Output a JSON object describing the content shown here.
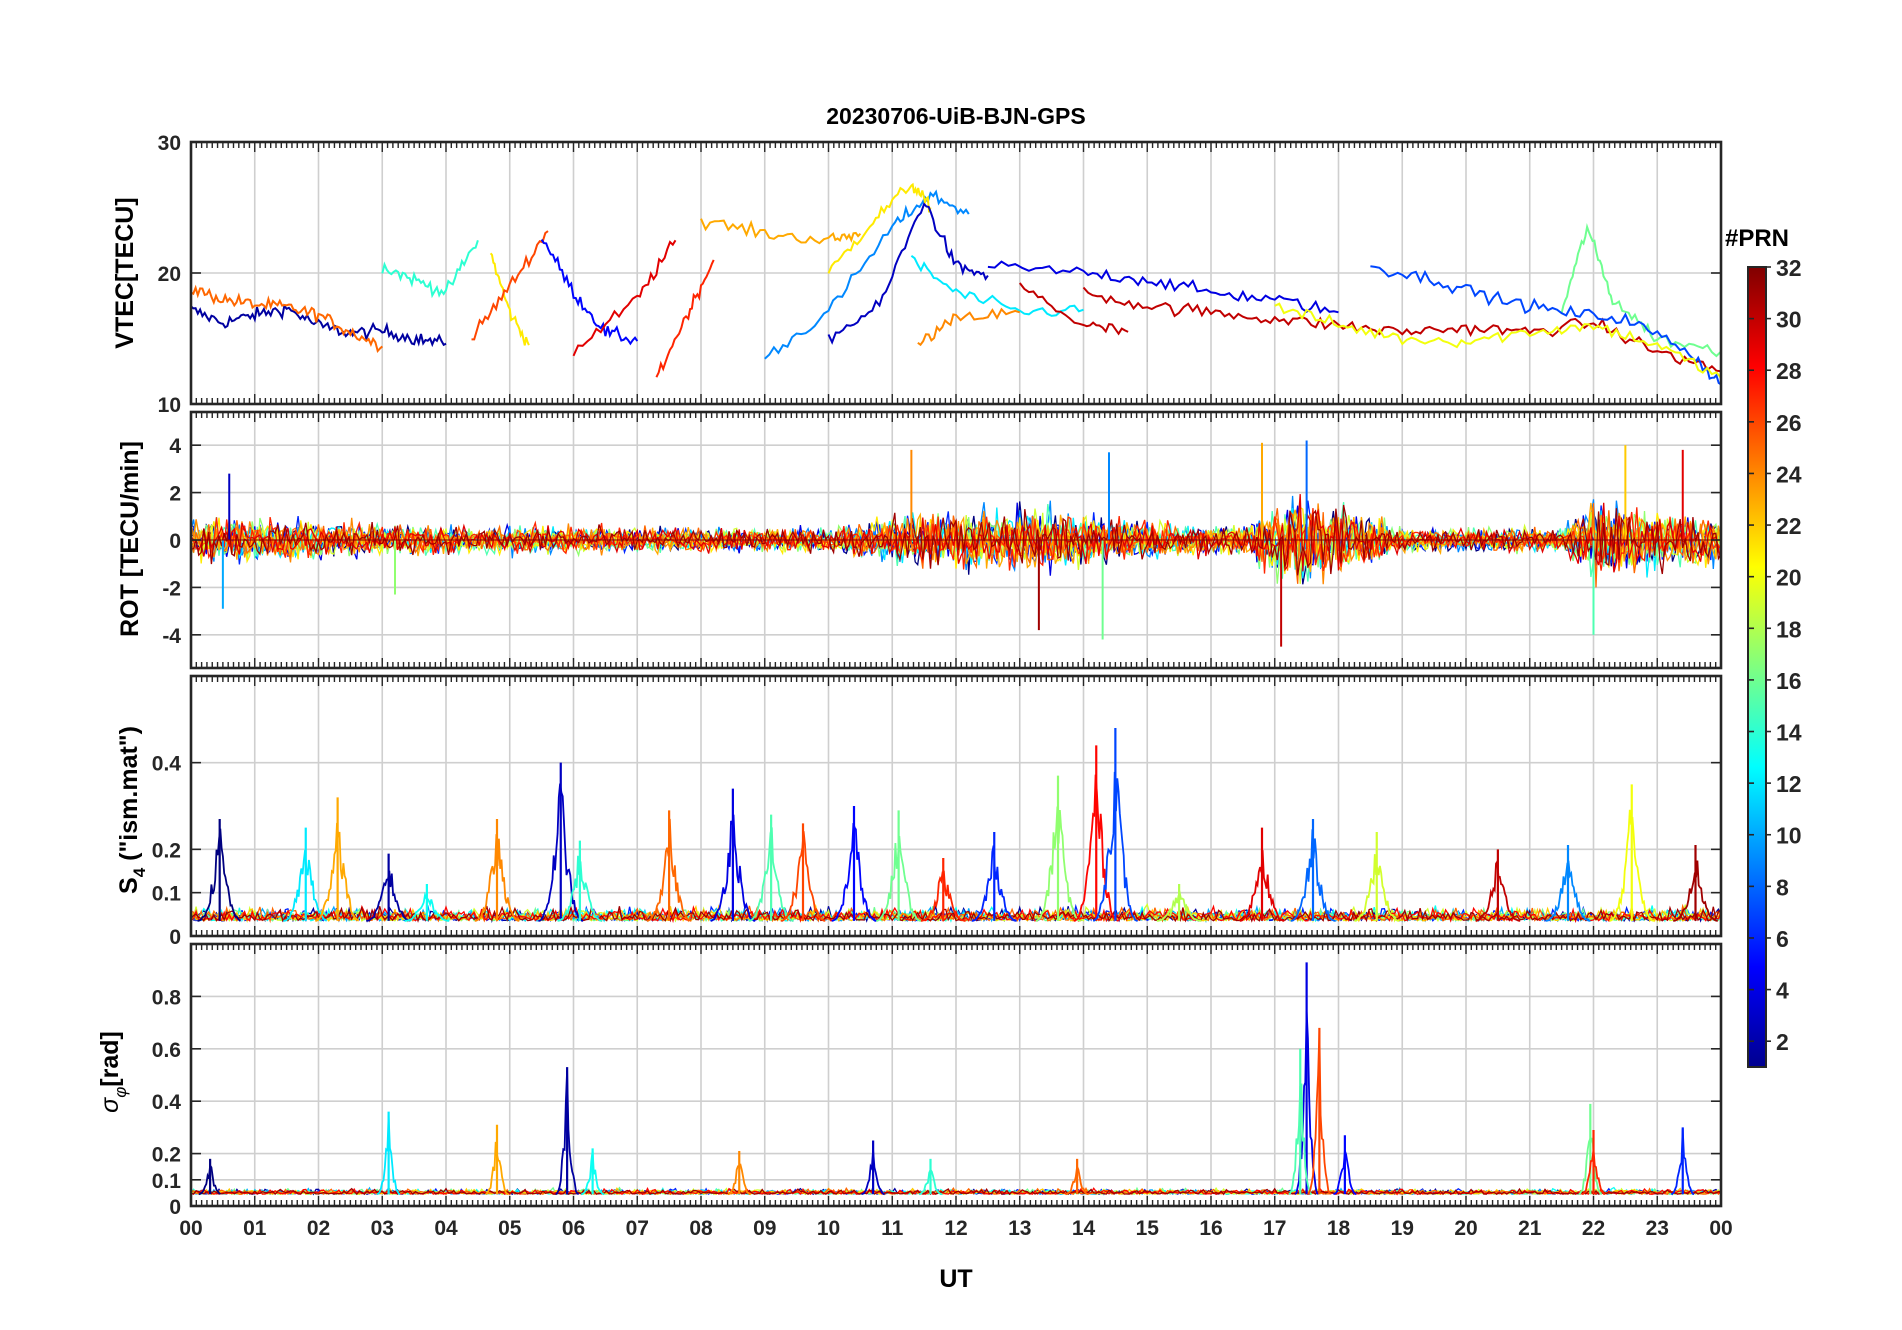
{
  "figure": {
    "title": "20230706-UiB-BJN-GPS",
    "xlabel": "UT",
    "colorbar_label": "#PRN"
  },
  "colors": {
    "axis": "#262626",
    "grid": "#cfcfcf",
    "background": "#ffffff"
  },
  "chart_data": [
    {
      "type": "line",
      "panel": "VTEC",
      "title": "20230706-UiB-BJN-GPS",
      "ylabel": "VTEC[TECU]",
      "xlabel": "",
      "xlim": [
        0,
        24
      ],
      "ylim": [
        10,
        30
      ],
      "yticks": [
        10,
        20,
        30
      ],
      "grid": true,
      "series": [
        {
          "prn": 2,
          "x": [
            0.0,
            0.5,
            1.0,
            1.5,
            2.0,
            2.5,
            3.0,
            3.5,
            4.0
          ],
          "y": [
            17.2,
            16.2,
            16.8,
            17.3,
            16.0,
            15.4,
            15.6,
            15.0,
            14.6
          ]
        },
        {
          "prn": 25,
          "x": [
            0.0,
            0.5,
            1.0,
            1.5,
            2.0,
            2.5,
            3.0
          ],
          "y": [
            18.8,
            18.0,
            17.6,
            17.4,
            16.8,
            15.5,
            14.4
          ]
        },
        {
          "prn": 14,
          "x": [
            3.0,
            3.5,
            4.0,
            4.5
          ],
          "y": [
            20.5,
            19.5,
            18.5,
            22.5
          ]
        },
        {
          "prn": 21,
          "x": [
            4.7,
            5.0,
            5.3
          ],
          "y": [
            21.5,
            17.0,
            14.5
          ]
        },
        {
          "prn": 26,
          "x": [
            4.4,
            5.0,
            5.6
          ],
          "y": [
            15.0,
            19.0,
            23.2
          ]
        },
        {
          "prn": 5,
          "x": [
            5.5,
            6.0,
            6.5,
            7.0
          ],
          "y": [
            22.8,
            18.5,
            15.5,
            14.8
          ]
        },
        {
          "prn": 29,
          "x": [
            6.0,
            7.0,
            7.6
          ],
          "y": [
            14.0,
            18.0,
            22.5
          ]
        },
        {
          "prn": 27,
          "x": [
            7.3,
            7.8,
            8.2
          ],
          "y": [
            12.0,
            17.0,
            21.0
          ]
        },
        {
          "prn": 23,
          "x": [
            8.0,
            9.0,
            10.0,
            10.5
          ],
          "y": [
            24.0,
            23.0,
            22.5,
            23.0
          ]
        },
        {
          "prn": 9,
          "x": [
            9.0,
            10.0,
            11.0,
            11.6,
            12.2
          ],
          "y": [
            13.5,
            17.0,
            23.5,
            26.0,
            24.5
          ]
        },
        {
          "prn": 21,
          "x": [
            10.0,
            10.7,
            11.3,
            11.6
          ],
          "y": [
            20.0,
            24.0,
            26.8,
            25.0
          ]
        },
        {
          "prn": 3,
          "x": [
            10.0,
            10.8,
            11.5,
            12.0,
            12.5
          ],
          "y": [
            15.0,
            17.5,
            25.5,
            20.5,
            19.8
          ]
        },
        {
          "prn": 12,
          "x": [
            11.3,
            12.0,
            13.0,
            14.0
          ],
          "y": [
            21.0,
            18.5,
            17.0,
            17.2
          ]
        },
        {
          "prn": 24,
          "x": [
            11.4,
            12.0,
            13.0
          ],
          "y": [
            14.5,
            16.5,
            17.0
          ]
        },
        {
          "prn": 30,
          "x": [
            13.0,
            14.0,
            14.7
          ],
          "y": [
            19.0,
            16.0,
            15.5
          ]
        },
        {
          "prn": 4,
          "x": [
            12.5,
            14.0,
            15.0,
            16.0,
            17.0,
            18.0
          ],
          "y": [
            20.5,
            20.0,
            19.5,
            18.5,
            18.0,
            17.0
          ]
        },
        {
          "prn": 30,
          "x": [
            14.0,
            15.0,
            16.0,
            17.0,
            18.0,
            19.0,
            20.0,
            21.0,
            22.0,
            23.0,
            24.0
          ],
          "y": [
            18.5,
            17.5,
            17.0,
            16.5,
            16.0,
            15.5,
            15.8,
            15.5,
            16.2,
            14.0,
            12.5
          ]
        },
        {
          "prn": 16,
          "x": [
            21.5,
            21.9,
            22.3,
            23.0,
            24.0
          ],
          "y": [
            17.0,
            23.5,
            18.0,
            15.0,
            14.0
          ]
        },
        {
          "prn": 7,
          "x": [
            18.5,
            19.5,
            20.5,
            21.5,
            22.5,
            23.5,
            24.0
          ],
          "y": [
            20.5,
            19.5,
            18.0,
            17.0,
            16.5,
            14.0,
            11.5
          ]
        },
        {
          "prn": 20,
          "x": [
            17.0,
            18.0,
            19.0,
            20.0,
            21.0,
            22.0,
            23.0,
            24.0
          ],
          "y": [
            17.5,
            16.0,
            15.0,
            14.8,
            15.5,
            16.0,
            14.5,
            12.0
          ]
        }
      ]
    },
    {
      "type": "line",
      "panel": "ROT",
      "ylabel": "ROT [TECU/min]",
      "xlim": [
        0,
        24
      ],
      "ylim": [
        -5.4,
        5.4
      ],
      "yticks": [
        -4,
        -2,
        0,
        2,
        4
      ],
      "grid": true,
      "noise_envelope": [
        {
          "x": 0,
          "y": 2.0
        },
        {
          "x": 4,
          "y": 1.2
        },
        {
          "x": 8,
          "y": 1.0
        },
        {
          "x": 10,
          "y": 1.0
        },
        {
          "x": 11.5,
          "y": 2.5
        },
        {
          "x": 13.5,
          "y": 2.5
        },
        {
          "x": 14.8,
          "y": 1.5
        },
        {
          "x": 16.5,
          "y": 1.2
        },
        {
          "x": 17.3,
          "y": 4.0
        },
        {
          "x": 18.0,
          "y": 3.0
        },
        {
          "x": 19,
          "y": 1.0
        },
        {
          "x": 21.5,
          "y": 1.0
        },
        {
          "x": 22.0,
          "y": 3.0
        },
        {
          "x": 24,
          "y": 2.0
        }
      ],
      "extremes": [
        {
          "x": 0.6,
          "y": 2.8
        },
        {
          "x": 0.5,
          "y": -2.9
        },
        {
          "x": 3.2,
          "y": -2.3
        },
        {
          "x": 11.3,
          "y": 3.8
        },
        {
          "x": 13.3,
          "y": -3.8
        },
        {
          "x": 14.4,
          "y": 3.7
        },
        {
          "x": 14.3,
          "y": -4.2
        },
        {
          "x": 16.8,
          "y": 4.1
        },
        {
          "x": 17.1,
          "y": -4.5
        },
        {
          "x": 17.5,
          "y": 4.2
        },
        {
          "x": 22.0,
          "y": -4.0
        },
        {
          "x": 22.5,
          "y": 4.0
        },
        {
          "x": 23.4,
          "y": 3.8
        }
      ]
    },
    {
      "type": "line",
      "panel": "S4",
      "ylabel": "S4 (\"ism.mat\")",
      "ylabel_main": "S",
      "ylabel_sub": "4",
      "ylabel_rest": " (\"ism.mat\")",
      "xlim": [
        0,
        24
      ],
      "ylim": [
        0,
        0.6
      ],
      "yticks": [
        0,
        0.1,
        0.2,
        0.4
      ],
      "ytick_labels": [
        "0",
        "0.1",
        "0.2",
        "0.4"
      ],
      "grid": true,
      "peaks": [
        {
          "x": 0.45,
          "y": 0.27
        },
        {
          "x": 1.8,
          "y": 0.25
        },
        {
          "x": 2.3,
          "y": 0.32
        },
        {
          "x": 3.1,
          "y": 0.19
        },
        {
          "x": 3.7,
          "y": 0.12
        },
        {
          "x": 4.8,
          "y": 0.27
        },
        {
          "x": 5.8,
          "y": 0.4
        },
        {
          "x": 6.1,
          "y": 0.22
        },
        {
          "x": 7.5,
          "y": 0.29
        },
        {
          "x": 8.5,
          "y": 0.34
        },
        {
          "x": 9.1,
          "y": 0.28
        },
        {
          "x": 9.6,
          "y": 0.26
        },
        {
          "x": 10.4,
          "y": 0.3
        },
        {
          "x": 11.1,
          "y": 0.29
        },
        {
          "x": 11.8,
          "y": 0.18
        },
        {
          "x": 12.6,
          "y": 0.24
        },
        {
          "x": 13.6,
          "y": 0.37
        },
        {
          "x": 14.2,
          "y": 0.44
        },
        {
          "x": 14.5,
          "y": 0.48
        },
        {
          "x": 15.5,
          "y": 0.12
        },
        {
          "x": 16.8,
          "y": 0.25
        },
        {
          "x": 17.6,
          "y": 0.27
        },
        {
          "x": 18.6,
          "y": 0.24
        },
        {
          "x": 20.5,
          "y": 0.2
        },
        {
          "x": 21.6,
          "y": 0.21
        },
        {
          "x": 22.6,
          "y": 0.35
        },
        {
          "x": 23.6,
          "y": 0.21
        }
      ]
    },
    {
      "type": "line",
      "panel": "SigmaPhi",
      "ylabel": "σφ[rad]",
      "ylabel_main": "σ",
      "ylabel_sub": "φ",
      "ylabel_rest": "[rad]",
      "xlim": [
        0,
        24
      ],
      "ylim": [
        0,
        1
      ],
      "yticks": [
        0,
        0.1,
        0.2,
        0.4,
        0.6,
        0.8
      ],
      "ytick_labels": [
        "0",
        "0.1",
        "0.2",
        "0.4",
        "0.6",
        "0.8"
      ],
      "xticks": [
        0,
        1,
        2,
        3,
        4,
        5,
        6,
        7,
        8,
        9,
        10,
        11,
        12,
        13,
        14,
        15,
        16,
        17,
        18,
        19,
        20,
        21,
        22,
        23,
        24
      ],
      "xtick_labels": [
        "00",
        "01",
        "02",
        "03",
        "04",
        "05",
        "06",
        "07",
        "08",
        "09",
        "10",
        "11",
        "12",
        "13",
        "14",
        "15",
        "16",
        "17",
        "18",
        "19",
        "20",
        "21",
        "22",
        "23",
        "00"
      ],
      "grid": true,
      "peaks": [
        {
          "x": 0.3,
          "y": 0.18
        },
        {
          "x": 3.1,
          "y": 0.36
        },
        {
          "x": 4.8,
          "y": 0.31
        },
        {
          "x": 5.9,
          "y": 0.53
        },
        {
          "x": 6.3,
          "y": 0.22
        },
        {
          "x": 8.6,
          "y": 0.21
        },
        {
          "x": 10.7,
          "y": 0.25
        },
        {
          "x": 11.6,
          "y": 0.18
        },
        {
          "x": 13.9,
          "y": 0.18
        },
        {
          "x": 17.5,
          "y": 0.93
        },
        {
          "x": 17.4,
          "y": 0.6
        },
        {
          "x": 17.7,
          "y": 0.68
        },
        {
          "x": 18.1,
          "y": 0.27
        },
        {
          "x": 21.95,
          "y": 0.39
        },
        {
          "x": 22.0,
          "y": 0.29
        },
        {
          "x": 23.4,
          "y": 0.3
        }
      ]
    }
  ],
  "colorbar": {
    "label": "#PRN",
    "min": 1,
    "max": 32,
    "ticks": [
      2,
      4,
      6,
      8,
      10,
      12,
      14,
      16,
      18,
      20,
      22,
      24,
      26,
      28,
      30,
      32
    ],
    "tick_labels": [
      "2",
      "4",
      "6",
      "8",
      "10",
      "12",
      "14",
      "16",
      "18",
      "20",
      "22",
      "24",
      "26",
      "28",
      "30",
      "32"
    ],
    "colormap": "jet"
  }
}
